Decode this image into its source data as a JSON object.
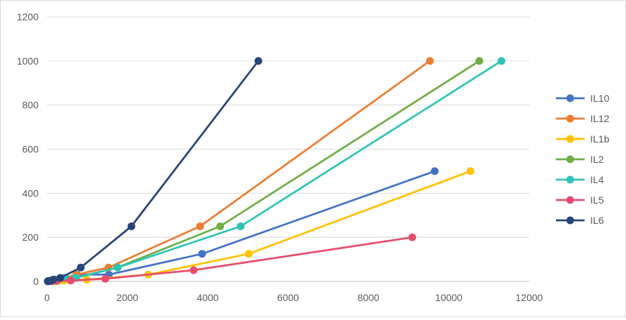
{
  "chart_data": {
    "type": "line",
    "title": "",
    "xlabel": "",
    "ylabel": "",
    "xlim": [
      0,
      12000
    ],
    "ylim": [
      0,
      1200
    ],
    "x_ticks": [
      0,
      2000,
      4000,
      6000,
      8000,
      10000,
      12000
    ],
    "y_ticks": [
      0,
      200,
      400,
      600,
      800,
      1000,
      1200
    ],
    "x_tick_labels": [
      "0",
      "2000",
      "4000",
      "6000",
      "8000",
      "10000",
      "12000"
    ],
    "y_tick_labels": [
      "0",
      "200",
      "400",
      "600",
      "800",
      "1000",
      "1200"
    ],
    "grid": "horizontal",
    "legend_position": "right",
    "series": [
      {
        "name": "IL10",
        "color": "#4472C4",
        "x": [
          20,
          30,
          50,
          110,
          220,
          420,
          750,
          1540,
          3860,
          9650
        ],
        "y": [
          0.5,
          1,
          2,
          4,
          8,
          16,
          31,
          31,
          125,
          500
        ]
      },
      {
        "name": "IL12",
        "color": "#ED7D31",
        "x": [
          40,
          70,
          120,
          200,
          420,
          730,
          1530,
          3810,
          9530
        ],
        "y": [
          1,
          2,
          4,
          8,
          16,
          31,
          63,
          250,
          1000
        ]
      },
      {
        "name": "IL1b",
        "color": "#FFC000",
        "x": [
          150,
          270,
          420,
          610,
          990,
          2520,
          5020,
          10540
        ],
        "y": [
          1,
          2,
          4,
          8,
          8,
          31,
          125,
          500
        ]
      },
      {
        "name": "IL2",
        "color": "#70AD47",
        "x": [
          30,
          60,
          120,
          240,
          460,
          680,
          1750,
          4310,
          10760
        ],
        "y": [
          1,
          2,
          4,
          8,
          16,
          16,
          63,
          250,
          1000
        ]
      },
      {
        "name": "IL4",
        "color": "#2EC4B6",
        "x": [
          30,
          60,
          120,
          240,
          460,
          720,
          1760,
          4820,
          11310
        ],
        "y": [
          1,
          2,
          4,
          8,
          16,
          16,
          63,
          250,
          1000
        ]
      },
      {
        "name": "IL5",
        "color": "#E84C6B",
        "x": [
          110,
          240,
          590,
          1450,
          3650,
          9090
        ],
        "y": [
          1,
          2,
          4,
          12,
          51,
          200
        ]
      },
      {
        "name": "IL6",
        "color": "#264478",
        "x": [
          20,
          50,
          100,
          160,
          330,
          840,
          2100,
          5260
        ],
        "y": [
          1,
          2,
          4,
          8,
          16,
          63,
          250,
          1000
        ]
      }
    ]
  }
}
